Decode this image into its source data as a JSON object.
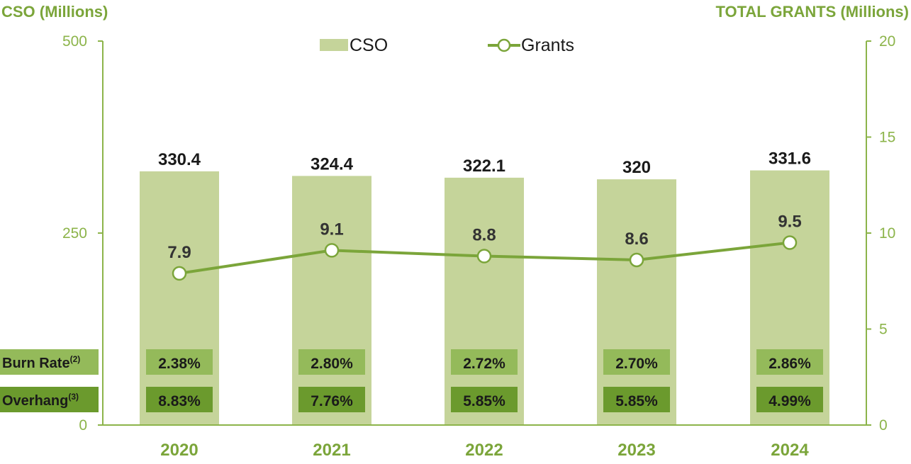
{
  "chart_data": {
    "type": "bar",
    "categories": [
      "2020",
      "2021",
      "2022",
      "2023",
      "2024"
    ],
    "series": [
      {
        "name": "CSO",
        "type": "bar",
        "axis": "left",
        "values": [
          330.4,
          324.4,
          322.1,
          320,
          331.6
        ]
      },
      {
        "name": "Grants",
        "type": "line",
        "axis": "right",
        "values": [
          7.9,
          9.1,
          8.8,
          8.6,
          9.5
        ]
      }
    ],
    "bar_labels": [
      "330.4",
      "324.4",
      "322.1",
      "320",
      "331.6"
    ],
    "line_labels": [
      "7.9",
      "9.1",
      "8.8",
      "8.6",
      "9.5"
    ],
    "ylabel_left": "CSO (Millions)",
    "ylabel_right": "TOTAL GRANTS (Millions)",
    "ylim_left": [
      0,
      500
    ],
    "ylim_right": [
      0,
      20
    ],
    "yticks_left": [
      "0",
      "250",
      "500"
    ],
    "yticks_right": [
      "0",
      "5",
      "10",
      "15",
      "20"
    ],
    "legend_position": "top-center",
    "grid": false,
    "rows": [
      {
        "label": "Burn Rate",
        "sup": "(2)",
        "values": [
          "2.38%",
          "2.80%",
          "2.72%",
          "2.70%",
          "2.86%"
        ]
      },
      {
        "label": "Overhang",
        "sup": "(3)",
        "values": [
          "8.83%",
          "7.76%",
          "5.85%",
          "5.85%",
          "4.99%"
        ]
      }
    ],
    "colors": {
      "bar": "#c5d49a",
      "line": "#7ba53a",
      "axis": "#8cb44a",
      "burn_rate_box": "#94ba5a",
      "overhang_box": "#6b9a2d"
    }
  }
}
